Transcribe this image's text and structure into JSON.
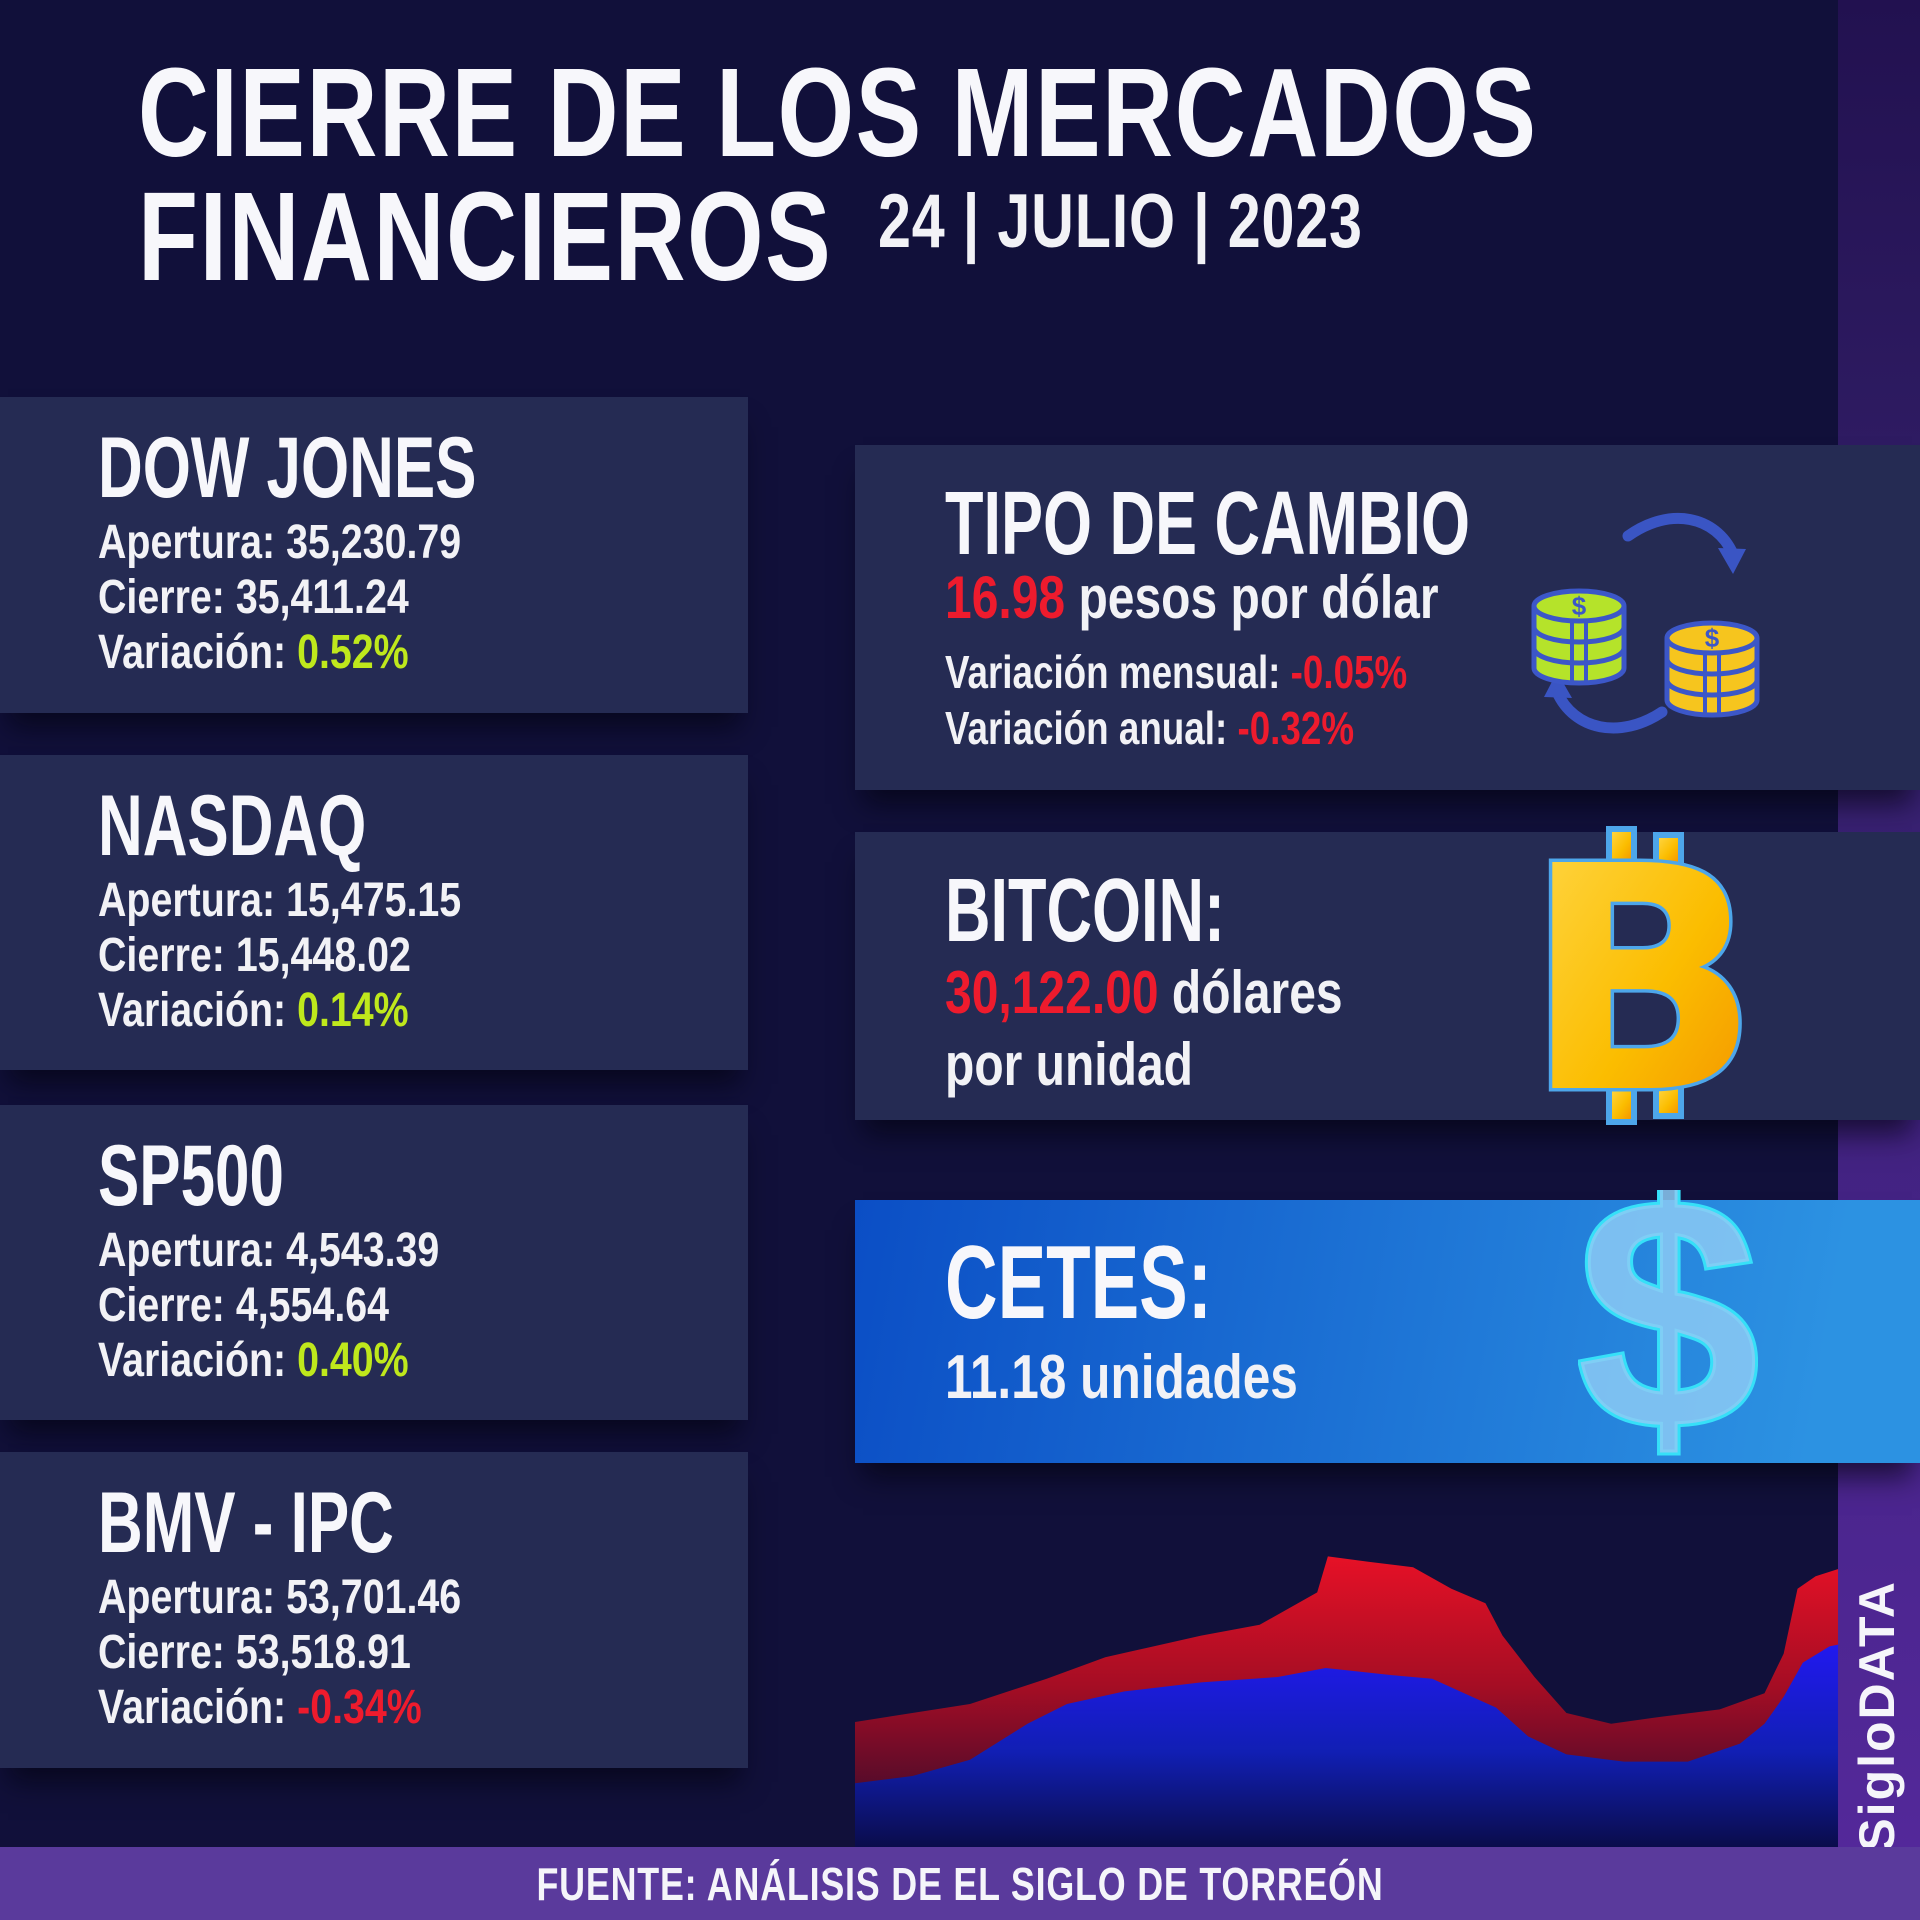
{
  "colors": {
    "red": "#ee1b2d",
    "green": "#bfe81c",
    "card_bg": "#252b53",
    "page_bg": "#11103a",
    "footer_purple": "#5a3a9c",
    "cetes_blue_start": "#0b4ec5",
    "cetes_blue_end": "#2c92e2",
    "bitcoin_gold": "#f9b300",
    "coin_green": "#b5e32a",
    "coin_gold": "#f6c51e"
  },
  "header": {
    "title_line1": "CIERRE DE LOS MERCADOS",
    "title_line2": "FINANCIEROS",
    "date": "24 | JULIO | 2023"
  },
  "indices": [
    {
      "name": "DOW JONES",
      "apertura_label": "Apertura:",
      "apertura": "35,230.79",
      "cierre_label": "Cierre:",
      "cierre": "35,411.24",
      "variacion_label": "Variación:",
      "variacion": "0.52%",
      "variacion_color": "#bfe81c"
    },
    {
      "name": "NASDAQ",
      "apertura_label": "Apertura:",
      "apertura": "15,475.15",
      "cierre_label": "Cierre:",
      "cierre": "15,448.02",
      "variacion_label": "Variación:",
      "variacion": "0.14%",
      "variacion_color": "#bfe81c"
    },
    {
      "name": "SP500",
      "apertura_label": "Apertura:",
      "apertura": "4,543.39",
      "cierre_label": "Cierre:",
      "cierre": "4,554.64",
      "variacion_label": "Variación:",
      "variacion": "0.40%",
      "variacion_color": "#bfe81c"
    },
    {
      "name": "BMV - IPC",
      "apertura_label": "Apertura:",
      "apertura": "53,701.46",
      "cierre_label": "Cierre:",
      "cierre": "53,518.91",
      "variacion_label": "Variación:",
      "variacion": "-0.34%",
      "variacion_color": "#ee1b2d"
    }
  ],
  "exchange": {
    "title": "TIPO DE CAMBIO",
    "rate": "16.98",
    "rate_suffix": "pesos por dólar",
    "monthly_label": "Variación mensual:",
    "monthly": "-0.05%",
    "annual_label": "Variación anual:",
    "annual": "-0.32%"
  },
  "bitcoin": {
    "title": "BITCOIN:",
    "price": "30,122.00",
    "price_suffix": "dólares",
    "line2": "por unidad"
  },
  "cetes": {
    "title": "CETES:",
    "value": "11.18 unidades"
  },
  "footer": {
    "source": "FUENTE: ANÁLISIS DE EL SIGLO DE TORREÓN",
    "brand": "SigloDATA"
  },
  "chart_data": {
    "type": "area",
    "title": "",
    "xlabel": "",
    "ylabel": "",
    "axes_visible": false,
    "grid": false,
    "legend_position": "none",
    "note": "decorative stacked market area chart, x and y normalized 0-100 (y: 0=top)",
    "series": [
      {
        "name": "red-area",
        "fill": "red-gradient",
        "points": [
          [
            0,
            65
          ],
          [
            10.8,
            60
          ],
          [
            18,
            53
          ],
          [
            23.5,
            47
          ],
          [
            32.5,
            41
          ],
          [
            38,
            38
          ],
          [
            43.4,
            29
          ],
          [
            44.4,
            19
          ],
          [
            48.2,
            20.5
          ],
          [
            52.4,
            22
          ],
          [
            56,
            28
          ],
          [
            59.2,
            32
          ],
          [
            60.8,
            41
          ],
          [
            63.8,
            52.5
          ],
          [
            66.8,
            62.5
          ],
          [
            71,
            65.5
          ],
          [
            75.8,
            63.5
          ],
          [
            81.2,
            61.5
          ],
          [
            85.4,
            57
          ],
          [
            87.2,
            46
          ],
          [
            88.5,
            28
          ],
          [
            90.2,
            24.5
          ],
          [
            93.9,
            21
          ],
          [
            100,
            18
          ]
        ]
      },
      {
        "name": "blue-area",
        "fill": "blue-gradient",
        "points": [
          [
            0,
            82
          ],
          [
            5.4,
            80
          ],
          [
            10.8,
            75.5
          ],
          [
            16.2,
            65.5
          ],
          [
            19.9,
            60
          ],
          [
            25.3,
            56.5
          ],
          [
            32.5,
            54
          ],
          [
            39.7,
            52.5
          ],
          [
            44.2,
            50
          ],
          [
            50.5,
            52
          ],
          [
            54.2,
            53
          ],
          [
            57.2,
            57
          ],
          [
            60.2,
            61
          ],
          [
            63.2,
            69
          ],
          [
            66.8,
            74
          ],
          [
            72.2,
            76
          ],
          [
            78.2,
            76
          ],
          [
            83.1,
            71
          ],
          [
            85.4,
            65.5
          ],
          [
            87.2,
            58
          ],
          [
            89,
            48.5
          ],
          [
            91.5,
            44
          ],
          [
            93.9,
            42.5
          ],
          [
            100,
            40.5
          ]
        ]
      }
    ]
  }
}
